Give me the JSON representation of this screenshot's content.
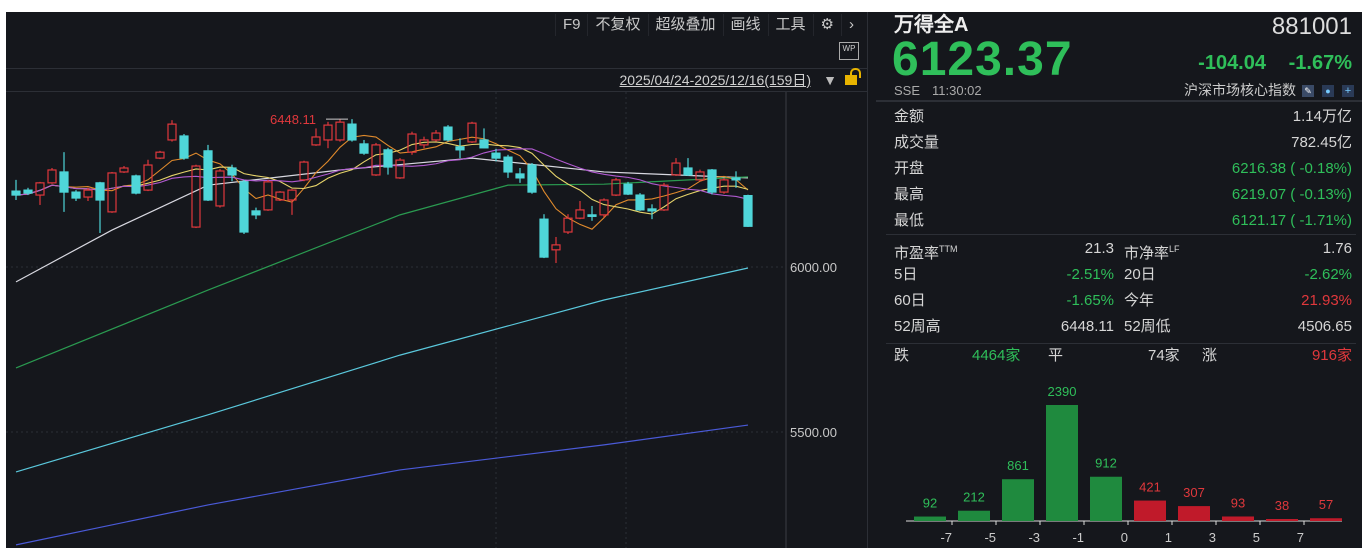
{
  "toolbar": {
    "items": [
      "F9",
      "不复权",
      "超级叠加",
      "画线",
      "工具"
    ],
    "settings_icon": "gear-icon",
    "more_icon": "chevron-right-icon",
    "wp_label": "WP"
  },
  "date_range": "2025/04/24-2025/12/16(159日)",
  "colors": {
    "up": "#e0383c",
    "down": "#4fd6d9",
    "ma_short": "#e08a2c",
    "ma_mid": "#e6d36a",
    "ma_purple": "#b05ad0",
    "ma_white": "#d8d8e0",
    "ma_green": "#2a9a50",
    "ma_cyan": "#5ac8dc",
    "ma_blue": "#4a5ad8",
    "bg": "#15171c"
  },
  "chart_data": {
    "type": "candlestick",
    "y_ticks": [
      6000,
      5500
    ],
    "y_tick_labels": [
      "6000.00",
      "5500.00"
    ],
    "ylim": [
      5158,
      6520
    ],
    "high_marker": "6448.11",
    "ohlc": [
      [
        6230,
        6264,
        6203,
        6218
      ],
      [
        6233,
        6240,
        6218,
        6224
      ],
      [
        6218,
        6258,
        6188,
        6255
      ],
      [
        6255,
        6300,
        6252,
        6294
      ],
      [
        6288,
        6348,
        6167,
        6227
      ],
      [
        6227,
        6233,
        6200,
        6209
      ],
      [
        6212,
        6240,
        6200,
        6233
      ],
      [
        6255,
        6258,
        6103,
        6203
      ],
      [
        6167,
        6288,
        6164,
        6285
      ],
      [
        6288,
        6306,
        6285,
        6300
      ],
      [
        6276,
        6280,
        6220,
        6224
      ],
      [
        6233,
        6325,
        6230,
        6309
      ],
      [
        6330,
        6352,
        6327,
        6348
      ],
      [
        6385,
        6445,
        6380,
        6433
      ],
      [
        6397,
        6403,
        6325,
        6330
      ],
      [
        6121,
        6310,
        6118,
        6306
      ],
      [
        6352,
        6370,
        6200,
        6203
      ],
      [
        6185,
        6297,
        6180,
        6291
      ],
      [
        6300,
        6310,
        6260,
        6279
      ],
      [
        6258,
        6264,
        6100,
        6106
      ],
      [
        6170,
        6180,
        6145,
        6158
      ],
      [
        6173,
        6264,
        6170,
        6258
      ],
      [
        6203,
        6230,
        6200,
        6227
      ],
      [
        6203,
        6236,
        6158,
        6233
      ],
      [
        6264,
        6322,
        6260,
        6318
      ],
      [
        6370,
        6420,
        6367,
        6394
      ],
      [
        6385,
        6440,
        6360,
        6430
      ],
      [
        6385,
        6448,
        6380,
        6439
      ],
      [
        6433,
        6448.11,
        6380,
        6385
      ],
      [
        6373,
        6385,
        6340,
        6345
      ],
      [
        6279,
        6376,
        6276,
        6370
      ],
      [
        6355,
        6361,
        6280,
        6303
      ],
      [
        6270,
        6330,
        6267,
        6324
      ],
      [
        6348,
        6410,
        6340,
        6403
      ],
      [
        6370,
        6395,
        6360,
        6385
      ],
      [
        6385,
        6415,
        6380,
        6406
      ],
      [
        6424,
        6430,
        6380,
        6385
      ],
      [
        6364,
        6390,
        6330,
        6355
      ],
      [
        6379,
        6440,
        6376,
        6436
      ],
      [
        6385,
        6420,
        6360,
        6361
      ],
      [
        6345,
        6358,
        6320,
        6330
      ],
      [
        6333,
        6340,
        6270,
        6288
      ],
      [
        6282,
        6300,
        6255,
        6270
      ],
      [
        6309,
        6315,
        6222,
        6227
      ],
      [
        6145,
        6160,
        6027,
        6030
      ],
      [
        6052,
        6091,
        6012,
        6067
      ],
      [
        6106,
        6160,
        6100,
        6148
      ],
      [
        6148,
        6200,
        6145,
        6173
      ],
      [
        6158,
        6185,
        6140,
        6155
      ],
      [
        6158,
        6208,
        6150,
        6203
      ],
      [
        6218,
        6270,
        6215,
        6264
      ],
      [
        6251,
        6258,
        6218,
        6221
      ],
      [
        6218,
        6224,
        6170,
        6173
      ],
      [
        6176,
        6190,
        6145,
        6170
      ],
      [
        6173,
        6255,
        6170,
        6248
      ],
      [
        6279,
        6330,
        6276,
        6315
      ],
      [
        6300,
        6330,
        6276,
        6279
      ],
      [
        6264,
        6295,
        6260,
        6288
      ],
      [
        6294,
        6297,
        6220,
        6227
      ],
      [
        6227,
        6270,
        6222,
        6264
      ],
      [
        6270,
        6290,
        6240,
        6264
      ],
      [
        6216.38,
        6219.07,
        6121.17,
        6123.37
      ]
    ],
    "long_ma": [
      {
        "color": "ma_white",
        "points": [
          [
            0,
            5955
          ],
          [
            8,
            6112
          ],
          [
            16,
            6248
          ],
          [
            27,
            6294
          ],
          [
            38,
            6330
          ],
          [
            49,
            6288
          ],
          [
            61,
            6270
          ]
        ]
      },
      {
        "color": "ma_green",
        "points": [
          [
            0,
            5694
          ],
          [
            16,
            5930
          ],
          [
            32,
            6158
          ],
          [
            41,
            6248
          ],
          [
            49,
            6251
          ],
          [
            61,
            6273
          ]
        ]
      },
      {
        "color": "ma_cyan",
        "points": [
          [
            0,
            5379
          ],
          [
            16,
            5552
          ],
          [
            32,
            5733
          ],
          [
            49,
            5900
          ],
          [
            61,
            5997
          ]
        ]
      },
      {
        "color": "ma_blue",
        "points": [
          [
            0,
            5158
          ],
          [
            16,
            5279
          ],
          [
            32,
            5385
          ],
          [
            49,
            5461
          ],
          [
            61,
            5521
          ]
        ]
      }
    ]
  },
  "quote": {
    "name": "万得全A",
    "code": "881001",
    "price": "6123.37",
    "change": "-104.04",
    "change_pct": "-1.67%",
    "exchange": "SSE",
    "time": "11:30:02",
    "category": "沪深市场核心指数",
    "icons": [
      "edit-icon",
      "bell-icon",
      "plus-icon"
    ]
  },
  "stats": [
    {
      "label": "金额",
      "value": "1.14万亿",
      "tone": "white"
    },
    {
      "label": "成交量",
      "value": "782.45亿",
      "tone": "white"
    },
    {
      "label": "开盘",
      "value": "6216.38 ( -0.18%)",
      "tone": "green"
    },
    {
      "label": "最高",
      "value": "6219.07 ( -0.13%)",
      "tone": "green"
    },
    {
      "label": "最低",
      "value": "6121.17 ( -1.71%)",
      "tone": "green"
    }
  ],
  "pairs": [
    [
      {
        "label": "市盈率",
        "sup": "TTM",
        "value": "21.3",
        "tone": "white"
      },
      {
        "label": "市净率",
        "sup": "LF",
        "value": "1.76",
        "tone": "white"
      }
    ],
    [
      {
        "label": "5日",
        "value": "-2.51%",
        "tone": "green"
      },
      {
        "label": "20日",
        "value": "-2.62%",
        "tone": "green"
      }
    ],
    [
      {
        "label": "60日",
        "value": "-1.65%",
        "tone": "green"
      },
      {
        "label": "今年",
        "value": "21.93%",
        "tone": "red"
      }
    ],
    [
      {
        "label": "52周高",
        "value": "6448.11",
        "tone": "white"
      },
      {
        "label": "52周低",
        "value": "4506.65",
        "tone": "white"
      }
    ]
  ],
  "breadth": {
    "down_label": "跌",
    "down": "4464家",
    "flat_label": "平",
    "flat": "74家",
    "up_label": "涨",
    "up": "916家"
  },
  "distribution": {
    "type": "bar",
    "values": [
      92,
      212,
      861,
      2390,
      912,
      421,
      307,
      93,
      38,
      57
    ],
    "tones": [
      "green",
      "green",
      "green",
      "green",
      "green",
      "red",
      "red",
      "red",
      "red",
      "red"
    ],
    "x_tick_labels": [
      "-7",
      "-5",
      "-3",
      "-1",
      "0",
      "1",
      "3",
      "5",
      "7"
    ]
  }
}
